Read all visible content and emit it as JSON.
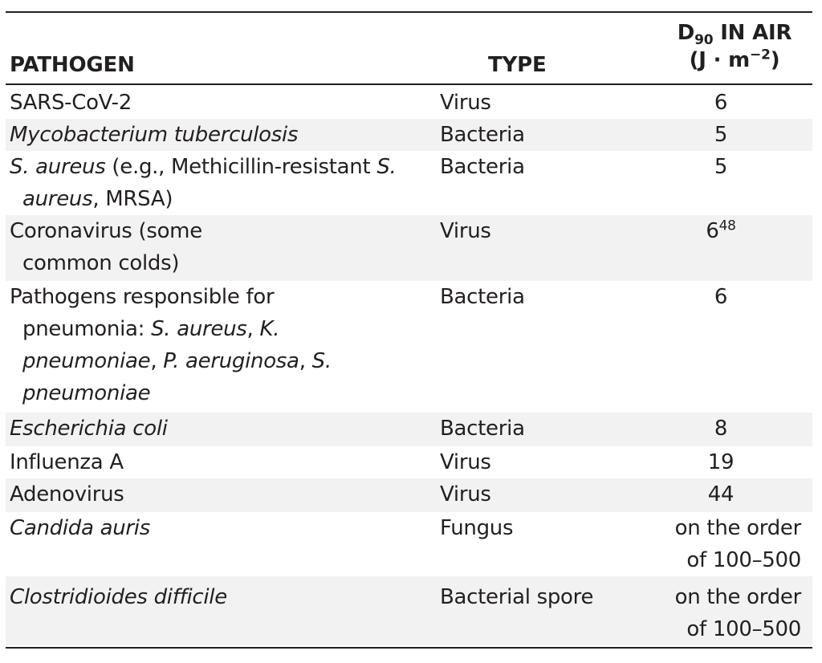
{
  "headers": {
    "pathogen": "PATHOGEN",
    "type": "TYPE",
    "dose_prefix": "D",
    "dose_sub": "90",
    "dose_line1_rest": " IN AIR",
    "dose_line2_a": "(J · m",
    "dose_line2_sup": "−2",
    "dose_line2_b": ")"
  },
  "rows": [
    {
      "pathogen": "SARS-CoV-2",
      "type": "Virus",
      "dose": "6"
    },
    {
      "pathogen": "Mycobacterium tuberculosis",
      "type": "Bacteria",
      "dose": "5"
    },
    {
      "pathogen_a": "S. aureus",
      "pathogen_b": " (e.g., Methicillin-resistant ",
      "pathogen_c": "S. aureus",
      "pathogen_d": ", MRSA)",
      "type": "Bacteria",
      "dose": "5"
    },
    {
      "pathogen": "Coronavirus (some common colds)",
      "type": "Virus",
      "dose": "6",
      "dose_ref": "48"
    },
    {
      "pathogen_a": "Pathogens responsible for pneumonia: ",
      "pathogen_b": "S. aureus",
      "pathogen_c": ", ",
      "pathogen_d": "K. pneumoniae",
      "pathogen_e": ", ",
      "pathogen_f": "P. aeruginosa",
      "pathogen_g": ", ",
      "pathogen_h": "S. pneumoniae",
      "type": "Bacteria",
      "dose": "6"
    },
    {
      "pathogen": "Escherichia coli",
      "type": "Bacteria",
      "dose": "8"
    },
    {
      "pathogen": "Influenza A",
      "type": "Virus",
      "dose": "19"
    },
    {
      "pathogen": "Adenovirus",
      "type": "Virus",
      "dose": "44"
    },
    {
      "pathogen": "Candida auris",
      "type": "Fungus",
      "dose": "on the order of 100–500"
    },
    {
      "pathogen": "Clostridioides difficile",
      "type": "Bacterial spore",
      "dose": "on the order of 100–500"
    }
  ]
}
